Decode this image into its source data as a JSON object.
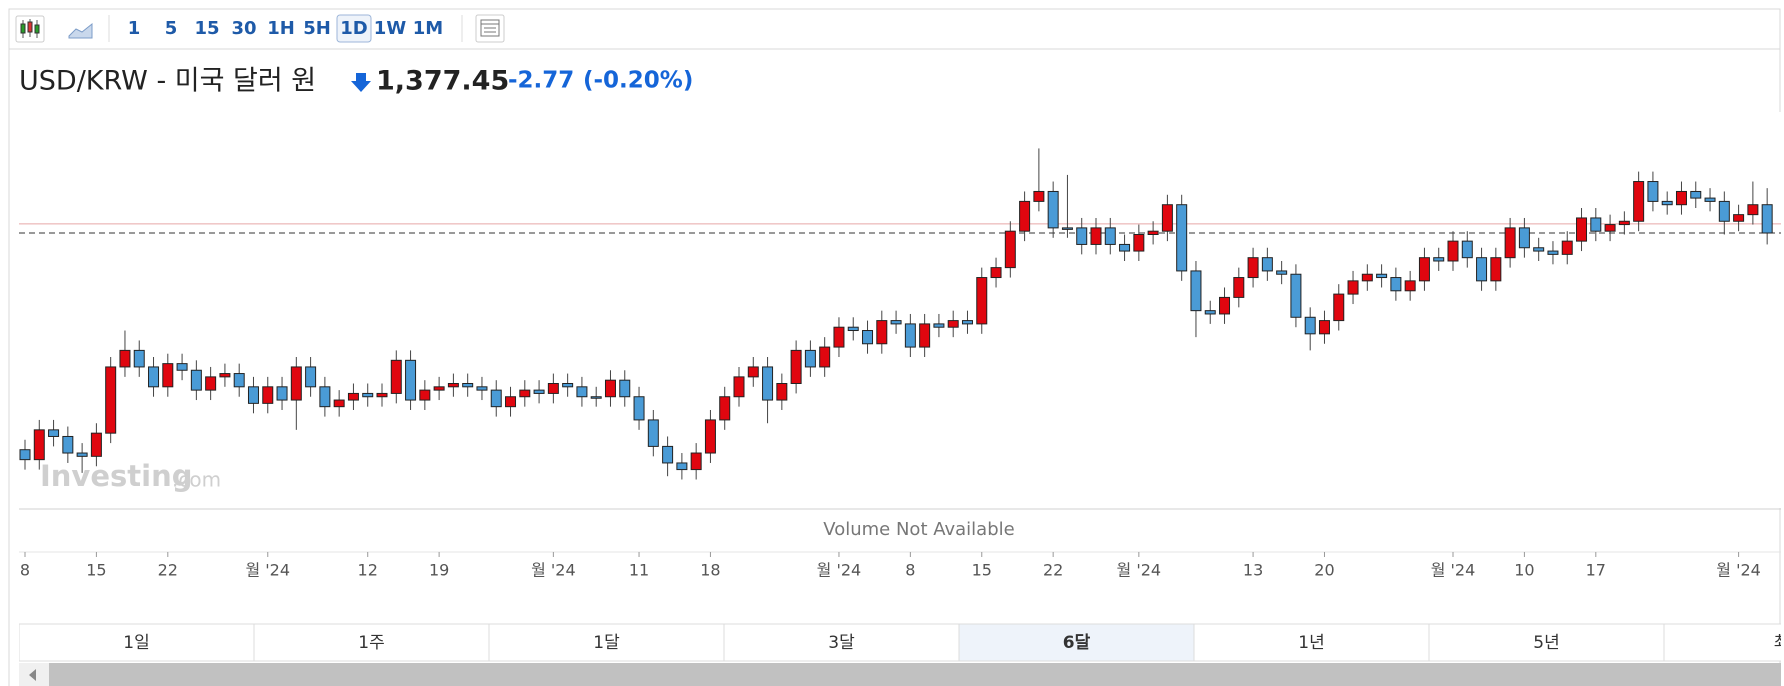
{
  "toolbar": {
    "intervals": [
      "1",
      "5",
      "15",
      "30",
      "1H",
      "5H",
      "1D",
      "1W",
      "1M"
    ],
    "selected": "1D"
  },
  "header": {
    "title": "USD/KRW - 미국 달러 원",
    "price": "1,377.45",
    "change": "-2.77",
    "change_percent": "(-0.20%)"
  },
  "chart_data": {
    "type": "candlestick",
    "categories": [
      "8",
      null,
      null,
      null,
      null,
      "15",
      null,
      null,
      null,
      null,
      "22",
      null,
      null,
      null,
      null,
      null,
      null,
      "월 '24",
      null,
      null,
      null,
      null,
      null,
      null,
      "12",
      null,
      null,
      null,
      null,
      "19",
      null,
      null,
      null,
      null,
      null,
      null,
      null,
      "월 '24",
      null,
      null,
      null,
      null,
      null,
      "11",
      null,
      null,
      null,
      null,
      "18",
      null,
      null,
      null,
      null,
      null,
      null,
      null,
      null,
      "월 '24",
      null,
      null,
      null,
      null,
      "8",
      null,
      null,
      null,
      null,
      "15",
      null,
      null,
      null,
      null,
      "22",
      null,
      null,
      null,
      null,
      null,
      "월 '24",
      null,
      null,
      null,
      null,
      null,
      null,
      null,
      "13",
      null,
      null,
      null,
      null,
      "20",
      null,
      null,
      null,
      null,
      null,
      null,
      null,
      null,
      "월 '24",
      null,
      null,
      null,
      null,
      "10",
      null,
      null,
      null,
      null,
      "17",
      null,
      null,
      null,
      null,
      null,
      null,
      null,
      null,
      null,
      "월 '24",
      null,
      null
    ],
    "open": [
      1312,
      1309,
      1318,
      1316,
      1311,
      1310,
      1317,
      1337,
      1342,
      1337,
      1331,
      1338,
      1336,
      1330,
      1334,
      1335,
      1331,
      1326,
      1331,
      1327,
      1337,
      1331,
      1325,
      1327,
      1329,
      1328,
      1329,
      1339,
      1327,
      1330,
      1331,
      1332,
      1331,
      1330,
      1325,
      1328,
      1330,
      1329,
      1332,
      1331,
      1328,
      1328,
      1333,
      1328,
      1321,
      1313,
      1308,
      1306,
      1311,
      1321,
      1328,
      1334,
      1337,
      1327,
      1332,
      1342,
      1337,
      1343,
      1349,
      1348,
      1344,
      1351,
      1350,
      1343,
      1350,
      1349,
      1351,
      1350,
      1364,
      1367,
      1378,
      1387,
      1390,
      1379,
      1379,
      1374,
      1379,
      1374,
      1372,
      1377,
      1378,
      1386,
      1366,
      1354,
      1353,
      1358,
      1364,
      1370,
      1366,
      1365,
      1352,
      1347,
      1351,
      1359,
      1363,
      1365,
      1364,
      1360,
      1363,
      1370,
      1369,
      1375,
      1370,
      1363,
      1370,
      1379,
      1373,
      1372,
      1371,
      1375,
      1382,
      1378,
      1380,
      1381,
      1393,
      1387,
      1386,
      1390,
      1388,
      1387,
      1381,
      1383,
      1386
    ],
    "high": [
      1315,
      1321,
      1321,
      1319,
      1314,
      1320,
      1340,
      1348,
      1345,
      1340,
      1341,
      1341,
      1339,
      1337,
      1338,
      1338,
      1334,
      1334,
      1334,
      1340,
      1340,
      1334,
      1330,
      1332,
      1332,
      1332,
      1342,
      1342,
      1333,
      1334,
      1335,
      1335,
      1334,
      1333,
      1331,
      1333,
      1333,
      1335,
      1335,
      1334,
      1331,
      1336,
      1336,
      1331,
      1324,
      1316,
      1311,
      1314,
      1324,
      1331,
      1337,
      1340,
      1340,
      1335,
      1345,
      1345,
      1346,
      1352,
      1352,
      1351,
      1354,
      1354,
      1353,
      1353,
      1353,
      1354,
      1354,
      1367,
      1370,
      1381,
      1390,
      1403,
      1393,
      1395,
      1382,
      1382,
      1382,
      1377,
      1380,
      1381,
      1389,
      1389,
      1369,
      1357,
      1361,
      1367,
      1373,
      1373,
      1369,
      1368,
      1355,
      1354,
      1362,
      1366,
      1368,
      1368,
      1367,
      1366,
      1373,
      1373,
      1378,
      1378,
      1373,
      1373,
      1382,
      1382,
      1376,
      1375,
      1378,
      1385,
      1385,
      1383,
      1384,
      1396,
      1396,
      1390,
      1393,
      1393,
      1391,
      1390,
      1386,
      1393,
      1391
    ],
    "low": [
      1306,
      1306,
      1313,
      1308,
      1305,
      1307,
      1314,
      1334,
      1334,
      1328,
      1328,
      1333,
      1327,
      1327,
      1331,
      1328,
      1323,
      1323,
      1324,
      1318,
      1328,
      1322,
      1322,
      1324,
      1325,
      1325,
      1326,
      1324,
      1324,
      1327,
      1328,
      1328,
      1327,
      1322,
      1322,
      1325,
      1326,
      1326,
      1328,
      1325,
      1325,
      1325,
      1325,
      1318,
      1310,
      1304,
      1303,
      1303,
      1308,
      1318,
      1325,
      1331,
      1320,
      1324,
      1329,
      1334,
      1334,
      1340,
      1345,
      1341,
      1341,
      1347,
      1340,
      1340,
      1346,
      1346,
      1347,
      1347,
      1361,
      1364,
      1375,
      1384,
      1376,
      1376,
      1371,
      1371,
      1371,
      1369,
      1369,
      1374,
      1375,
      1363,
      1346,
      1350,
      1350,
      1355,
      1361,
      1363,
      1362,
      1349,
      1342,
      1344,
      1348,
      1356,
      1360,
      1361,
      1357,
      1357,
      1360,
      1366,
      1366,
      1367,
      1360,
      1360,
      1367,
      1370,
      1369,
      1368,
      1368,
      1372,
      1375,
      1375,
      1377,
      1378,
      1384,
      1383,
      1383,
      1385,
      1384,
      1377,
      1378,
      1380,
      1374
    ],
    "close": [
      1309,
      1318,
      1316,
      1311,
      1310,
      1317,
      1337,
      1342,
      1337,
      1331,
      1338,
      1336,
      1330,
      1334,
      1335,
      1331,
      1326,
      1331,
      1327,
      1337,
      1331,
      1325,
      1327,
      1329,
      1328,
      1329,
      1339,
      1327,
      1330,
      1331,
      1332,
      1331,
      1330,
      1325,
      1328,
      1330,
      1329,
      1332,
      1331,
      1328,
      1328,
      1333,
      1328,
      1321,
      1313,
      1308,
      1306,
      1311,
      1321,
      1328,
      1334,
      1337,
      1327,
      1332,
      1342,
      1337,
      1343,
      1349,
      1348,
      1344,
      1351,
      1350,
      1343,
      1350,
      1349,
      1351,
      1350,
      1364,
      1367,
      1378,
      1387,
      1390,
      1379,
      1379,
      1374,
      1379,
      1374,
      1372,
      1377,
      1378,
      1386,
      1366,
      1354,
      1353,
      1358,
      1364,
      1370,
      1366,
      1365,
      1352,
      1347,
      1351,
      1359,
      1363,
      1365,
      1364,
      1360,
      1363,
      1370,
      1369,
      1375,
      1370,
      1363,
      1370,
      1379,
      1373,
      1372,
      1371,
      1375,
      1382,
      1378,
      1380,
      1381,
      1393,
      1387,
      1386,
      1390,
      1388,
      1387,
      1381,
      1383,
      1386,
      1377.45
    ],
    "up_color": "#e0060f",
    "down_color": "#4a9bd6",
    "previous_close": 1380.22,
    "ylim": [
      1295,
      1414
    ]
  },
  "watermark": [
    "Investing",
    ".com"
  ],
  "volume_message": "Volume Not Available",
  "ranges": [
    "1일",
    "1주",
    "1달",
    "3달",
    "6달",
    "1년",
    "5년",
    "최"
  ],
  "selected_range": "6달"
}
